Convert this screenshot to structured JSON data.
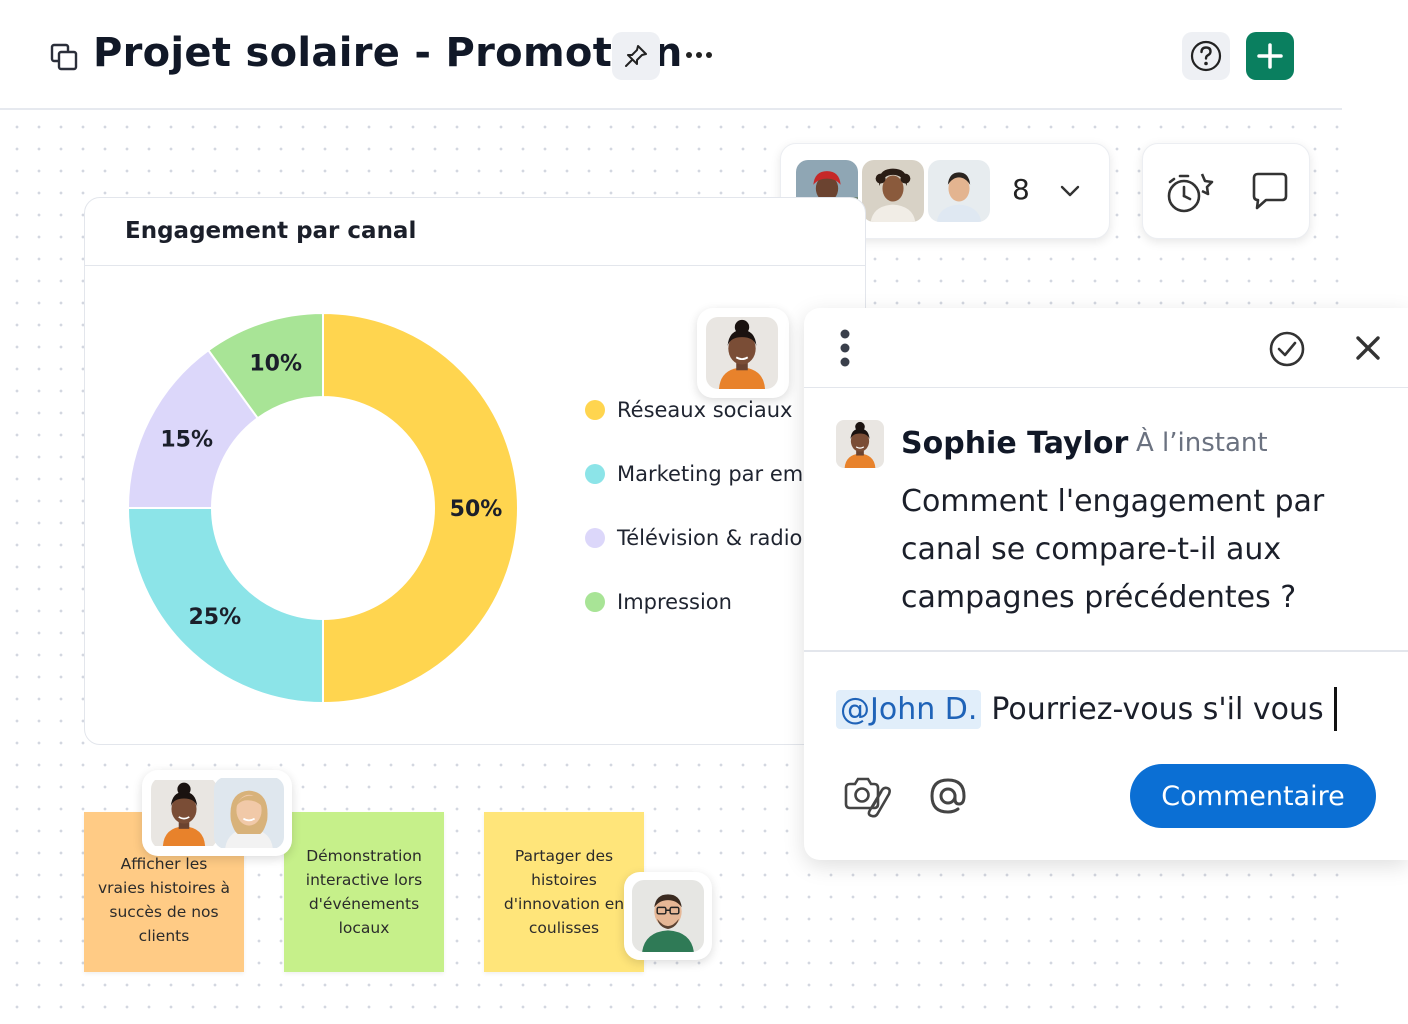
{
  "header": {
    "board_title": "Projet solaire - Promotion",
    "icons": {
      "board": "board-copy-icon",
      "pin": "pin-icon",
      "more": "more-horizontal-icon",
      "help": "help-circle-icon",
      "add": "plus-icon"
    }
  },
  "collaborators": {
    "count": "8",
    "avatars": [
      "avatar-man-red-headscarf",
      "avatar-man-curly-hair",
      "avatar-man-white-shirt"
    ]
  },
  "actions": {
    "timer": "timer-icon",
    "comments": "comment-icon"
  },
  "chart": {
    "title": "Engagement par canal",
    "legend": [
      "Réseaux sociaux",
      "Marketing par email",
      "Télévision & radio",
      "Impression"
    ]
  },
  "chart_data": {
    "type": "pie",
    "title": "Engagement par canal",
    "categories": [
      "Réseaux sociaux",
      "Marketing par email",
      "Télévision & radio",
      "Impression"
    ],
    "values": [
      50,
      25,
      15,
      10
    ],
    "labels": [
      "50%",
      "25%",
      "15%",
      "10%"
    ],
    "colors": [
      "#FFD54F",
      "#8CE4E8",
      "#DCD7FA",
      "#A8E496"
    ],
    "donut": true,
    "legend_position": "right"
  },
  "comment": {
    "author": "Sophie Taylor",
    "time": "À l’instant",
    "message": "Comment l'engagement par canal se compare-t-il aux campagnes précédentes ?",
    "reply_mention": "@John D.",
    "reply_text": "Pourriez-vous s'il vous",
    "submit_label": "Commentaire"
  },
  "stickies": [
    {
      "text": "Afficher les vraies histoires à succès de nos clients",
      "color": "#FFCB85"
    },
    {
      "text": "Démonstration interactive lors d'événements locaux",
      "color": "#C6F08A"
    },
    {
      "text": "Partager des histoires d'innovation en coulisses",
      "color": "#FFE57A"
    }
  ],
  "colors": {
    "primary_button": "#0B6FD4",
    "add_button": "#0A7F5F",
    "mention_bg": "#E1EEFA"
  }
}
